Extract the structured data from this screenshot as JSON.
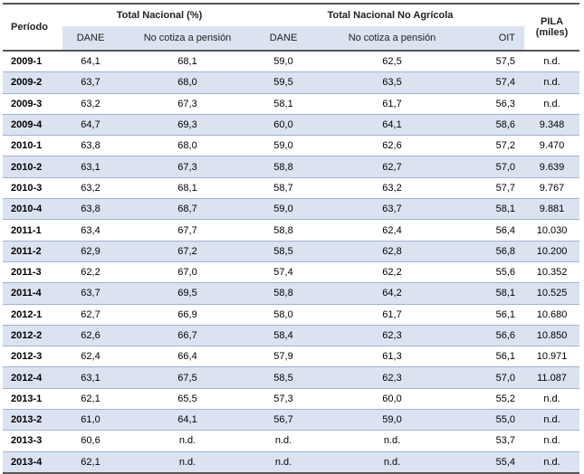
{
  "headers": {
    "periodo": "Período",
    "total_nacional": "Total Nacional (%)",
    "no_agricola": "Total Nacional No Agrícola",
    "pila_line1": "PILA",
    "pila_line2": "(miles)",
    "dane_1": "DANE",
    "no_cotiza_1": "No cotiza a pensión",
    "dane_2": "DANE",
    "no_cotiza_2": "No cotiza a pensión",
    "oit": "OIT"
  },
  "rows": [
    [
      "2009-1",
      "64,1",
      "68,1",
      "59,0",
      "62,5",
      "57,5",
      "n.d."
    ],
    [
      "2009-2",
      "63,7",
      "68,0",
      "59,5",
      "63,5",
      "57,4",
      "n.d."
    ],
    [
      "2009-3",
      "63,2",
      "67,3",
      "58,1",
      "61,7",
      "56,3",
      "n.d."
    ],
    [
      "2009-4",
      "64,7",
      "69,3",
      "60,0",
      "64,1",
      "58,6",
      "9.348"
    ],
    [
      "2010-1",
      "63,8",
      "68,0",
      "59,0",
      "62,6",
      "57,2",
      "9.470"
    ],
    [
      "2010-2",
      "63,1",
      "67,3",
      "58,8",
      "62,7",
      "57,0",
      "9.639"
    ],
    [
      "2010-3",
      "63,2",
      "68,1",
      "58,7",
      "63,2",
      "57,7",
      "9.767"
    ],
    [
      "2010-4",
      "63,8",
      "68,7",
      "59,0",
      "63,7",
      "58,1",
      "9.881"
    ],
    [
      "2011-1",
      "63,4",
      "67,7",
      "58,8",
      "62,4",
      "56,4",
      "10.030"
    ],
    [
      "2011-2",
      "62,9",
      "67,2",
      "58,5",
      "62,8",
      "56,8",
      "10.200"
    ],
    [
      "2011-3",
      "62,2",
      "67,0",
      "57,4",
      "62,2",
      "55,6",
      "10.352"
    ],
    [
      "2011-4",
      "63,7",
      "69,5",
      "58,8",
      "64,2",
      "58,1",
      "10.525"
    ],
    [
      "2012-1",
      "62,7",
      "66,9",
      "58,0",
      "61,7",
      "56,1",
      "10.680"
    ],
    [
      "2012-2",
      "62,6",
      "66,7",
      "58,4",
      "62,3",
      "56,6",
      "10.850"
    ],
    [
      "2012-3",
      "62,4",
      "66,4",
      "57,9",
      "61,3",
      "56,1",
      "10.971"
    ],
    [
      "2012-4",
      "63,1",
      "67,5",
      "58,5",
      "62,3",
      "57,0",
      "11.087"
    ],
    [
      "2013-1",
      "62,1",
      "65,5",
      "57,3",
      "60,0",
      "55,2",
      "n.d."
    ],
    [
      "2013-2",
      "61,0",
      "64,1",
      "56,7",
      "59,0",
      "55,0",
      "n.d."
    ],
    [
      "2013-3",
      "60,6",
      "n.d.",
      "n.d.",
      "n.d.",
      "53,7",
      "n.d."
    ],
    [
      "2013-4",
      "62,1",
      "n.d.",
      "n.d.",
      "n.d.",
      "55,4",
      "n.d."
    ]
  ]
}
